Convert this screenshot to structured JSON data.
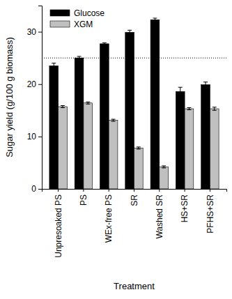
{
  "chart_data": {
    "type": "bar",
    "x_label": "Treatment",
    "y_label": "Sugar yield (g/100 g biomass)",
    "categories": [
      "Unpresoaked PS",
      "PS",
      "WEx-free PS",
      "SR",
      "Washed SR",
      "HS+SR",
      "PFHS+SR"
    ],
    "series": [
      {
        "name": "Glucose",
        "color": "#000000",
        "values": [
          23.5,
          25.0,
          27.7,
          29.9,
          32.3,
          18.6,
          19.9
        ],
        "errors": [
          0.5,
          0.3,
          0.2,
          0.4,
          0.3,
          0.8,
          0.5
        ]
      },
      {
        "name": "XGM",
        "color": "#c0c0c0",
        "values": [
          15.7,
          16.4,
          13.1,
          7.8,
          4.2,
          15.3,
          15.3
        ],
        "errors": [
          0.2,
          0.2,
          0.2,
          0.2,
          0.2,
          0.2,
          0.3
        ]
      }
    ],
    "reference_line": 25,
    "ylim": [
      0,
      35
    ],
    "yticks": [
      0,
      10,
      20,
      30
    ],
    "legend": "upper left"
  }
}
